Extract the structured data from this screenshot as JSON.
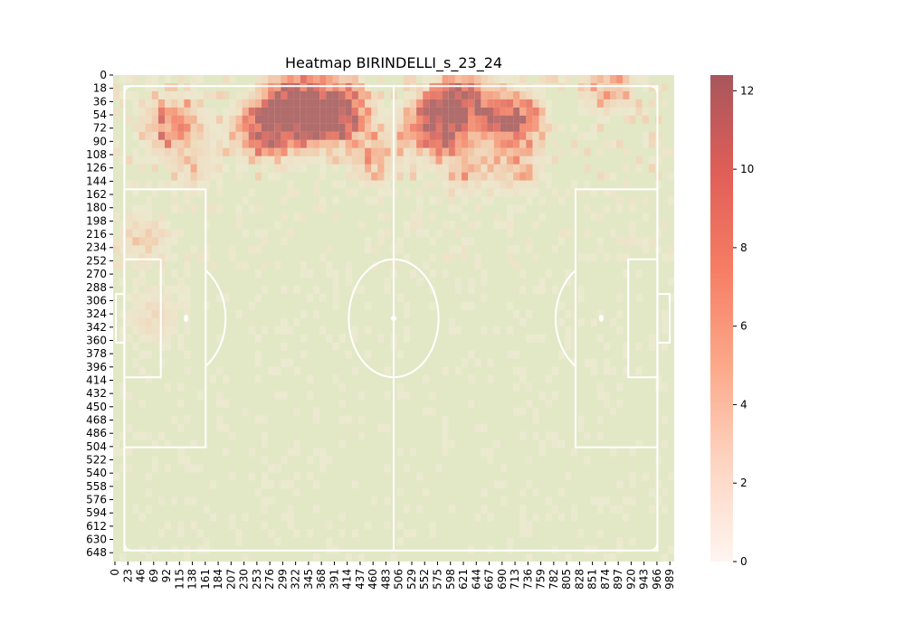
{
  "chart_data": {
    "type": "heatmap",
    "title": "Heatmap BIRINDELLI_s_23_24",
    "xlabel": "",
    "ylabel": "",
    "x_ticks": [
      "0",
      "23",
      "46",
      "69",
      "92",
      "115",
      "138",
      "161",
      "184",
      "207",
      "230",
      "253",
      "276",
      "299",
      "322",
      "345",
      "368",
      "391",
      "414",
      "437",
      "460",
      "483",
      "506",
      "529",
      "552",
      "575",
      "598",
      "621",
      "644",
      "667",
      "690",
      "713",
      "736",
      "759",
      "782",
      "805",
      "828",
      "851",
      "874",
      "897",
      "920",
      "943",
      "966",
      "989"
    ],
    "y_ticks": [
      "0",
      "18",
      "36",
      "54",
      "72",
      "90",
      "108",
      "126",
      "144",
      "162",
      "180",
      "198",
      "216",
      "234",
      "252",
      "270",
      "288",
      "306",
      "324",
      "342",
      "360",
      "378",
      "396",
      "414",
      "432",
      "450",
      "468",
      "486",
      "504",
      "522",
      "540",
      "558",
      "576",
      "594",
      "612",
      "630",
      "648"
    ],
    "x_range": [
      0,
      1000
    ],
    "y_range": [
      0,
      660
    ],
    "colorbar": {
      "min": 0,
      "max": 12.4,
      "ticks": [
        "0",
        "2",
        "4",
        "6",
        "8",
        "10",
        "12"
      ]
    },
    "pitch_color": "#e2e8c6",
    "line_color": "#ffffff",
    "colormap": [
      "#fff5f0",
      "#fdd5c2",
      "#fca98a",
      "#f67d64",
      "#e05e58",
      "#a8565c"
    ],
    "hotspots": [
      {
        "x": 280,
        "y": 60,
        "value": 8.5
      },
      {
        "x": 300,
        "y": 40,
        "value": 9.0
      },
      {
        "x": 322,
        "y": 20,
        "value": 7.0
      },
      {
        "x": 345,
        "y": 60,
        "value": 8.5
      },
      {
        "x": 368,
        "y": 45,
        "value": 8.0
      },
      {
        "x": 391,
        "y": 30,
        "value": 7.5
      },
      {
        "x": 414,
        "y": 55,
        "value": 6.5
      },
      {
        "x": 253,
        "y": 70,
        "value": 7.0
      },
      {
        "x": 575,
        "y": 60,
        "value": 8.0
      },
      {
        "x": 598,
        "y": 40,
        "value": 8.0
      },
      {
        "x": 621,
        "y": 30,
        "value": 8.5
      },
      {
        "x": 552,
        "y": 70,
        "value": 6.0
      },
      {
        "x": 690,
        "y": 55,
        "value": 7.5
      },
      {
        "x": 713,
        "y": 55,
        "value": 8.0
      },
      {
        "x": 874,
        "y": 10,
        "value": 6.0
      },
      {
        "x": 92,
        "y": 65,
        "value": 5.0
      },
      {
        "x": 115,
        "y": 60,
        "value": 4.5
      },
      {
        "x": 460,
        "y": 110,
        "value": 5.0
      },
      {
        "x": 621,
        "y": 115,
        "value": 5.0
      },
      {
        "x": 713,
        "y": 120,
        "value": 4.5
      },
      {
        "x": 138,
        "y": 120,
        "value": 3.0
      },
      {
        "x": 46,
        "y": 220,
        "value": 3.5
      },
      {
        "x": 69,
        "y": 320,
        "value": 3.0
      }
    ]
  }
}
